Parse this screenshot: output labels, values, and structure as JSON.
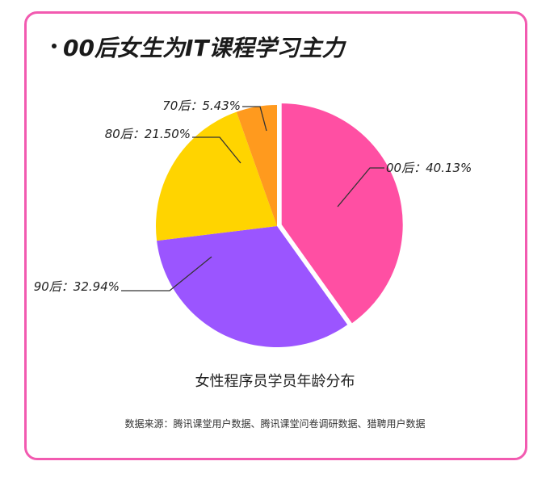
{
  "header": {
    "title": "00后女生为IT课程学习主力"
  },
  "chart_data": {
    "type": "pie",
    "title": "女性程序员学员年龄分布",
    "slices": [
      {
        "label": "00后",
        "value": 40.13,
        "display": "00后：40.13%",
        "color": "#ff4fa3"
      },
      {
        "label": "90后",
        "value": 32.94,
        "display": "90后：32.94%",
        "color": "#9b55ff"
      },
      {
        "label": "80后",
        "value": 21.5,
        "display": "80后：21.50%",
        "color": "#ffd400"
      },
      {
        "label": "70后",
        "value": 5.43,
        "display": "70后：5.43%",
        "color": "#ff9a1e"
      }
    ]
  },
  "footer": {
    "source": "数据来源：腾讯课堂用户数据、腾讯课堂问卷调研数据、猎聘用户数据"
  }
}
